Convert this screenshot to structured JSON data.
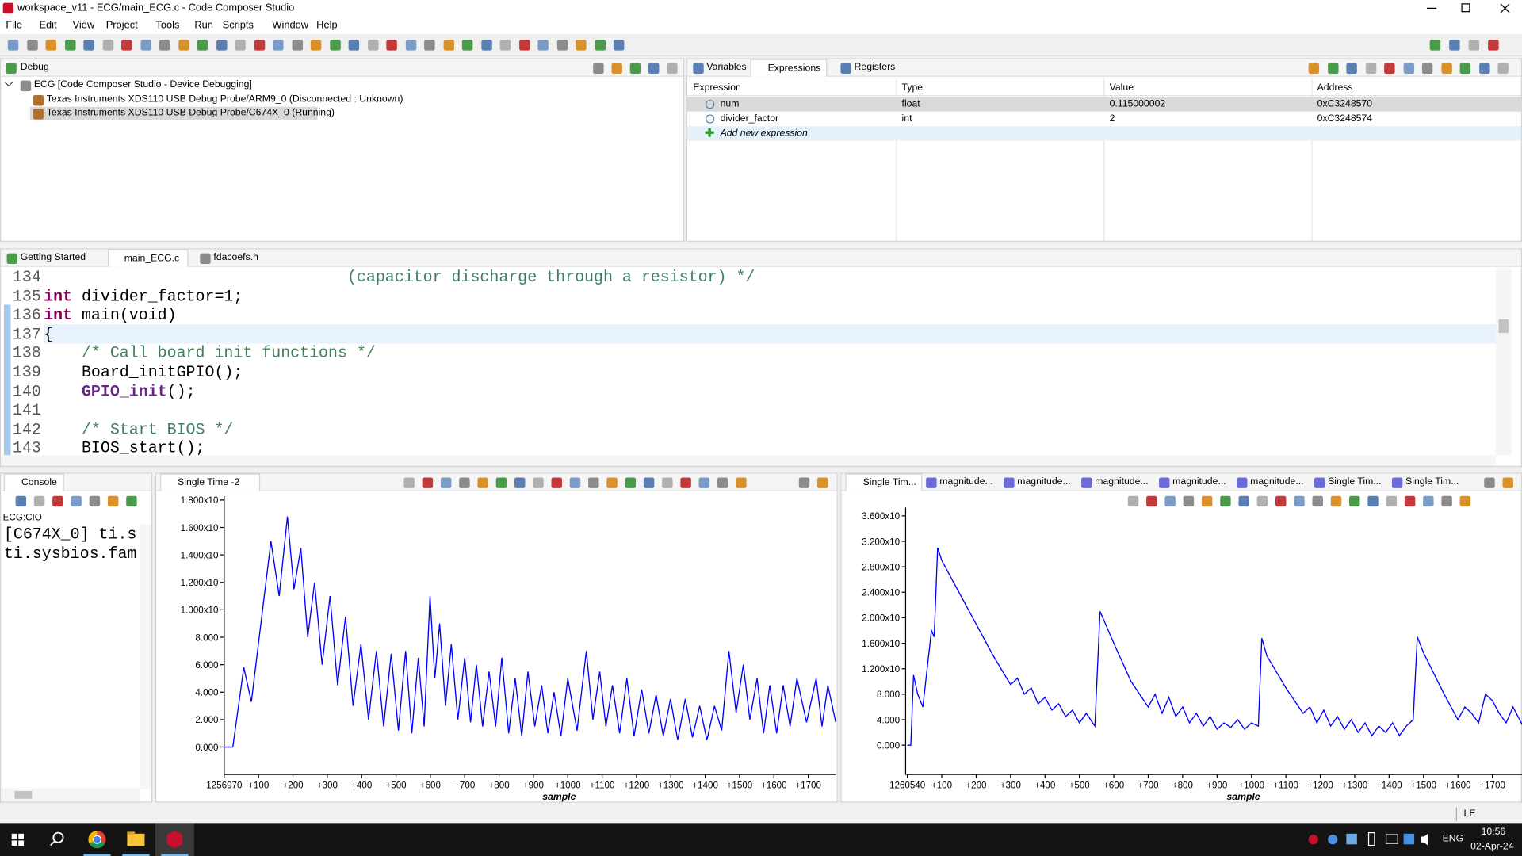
{
  "window": {
    "title": "workspace_v11 - ECG/main_ECG.c - Code Composer Studio"
  },
  "menu": [
    "File",
    "Edit",
    "View",
    "Project",
    "Tools",
    "Run",
    "Scripts",
    "Window",
    "Help"
  ],
  "debug": {
    "tab": "Debug",
    "items": [
      "ECG [Code Composer Studio - Device Debugging]",
      "Texas Instruments XDS110 USB Debug Probe/ARM9_0 (Disconnected : Unknown)",
      "Texas Instruments XDS110 USB Debug Probe/C674X_0 (Running)"
    ]
  },
  "expressions": {
    "tabs": [
      "Variables",
      "Expressions",
      "Registers"
    ],
    "columns": [
      "Expression",
      "Type",
      "Value",
      "Address"
    ],
    "rows": [
      [
        "num",
        "float",
        "0.115000002",
        "0xC3248570"
      ],
      [
        "divider_factor",
        "int",
        "2",
        "0xC3248574"
      ]
    ],
    "add": "Add new expression"
  },
  "editor": {
    "tabs": [
      "Getting Started",
      "main_ECG.c",
      "fdacoefs.h"
    ],
    "lines": [
      {
        "no": 134,
        "code": "                                (capacitor discharge through a resistor) */"
      },
      {
        "no": 135,
        "code": "int divider_factor=1;"
      },
      {
        "no": 136,
        "code": "int main(void)"
      },
      {
        "no": 137,
        "code": "{"
      },
      {
        "no": 138,
        "code": "    /* Call board init functions */"
      },
      {
        "no": 139,
        "code": "    Board_initGPIO();"
      },
      {
        "no": 140,
        "code": "    GPIO_init();"
      },
      {
        "no": 141,
        "code": ""
      },
      {
        "no": 142,
        "code": "    /* Start BIOS */"
      },
      {
        "no": 143,
        "code": "    BIOS_start();"
      }
    ]
  },
  "console": {
    "tab": "Console",
    "label": "ECG:CIO",
    "lines": [
      "[C674X_0] ti.s",
      "ti.sysbios.fam"
    ]
  },
  "graphs": [
    {
      "type": "line",
      "tabs": [
        "Single Time -2"
      ],
      "x_label": "sample",
      "color": "#0000ff",
      "xlim": [
        1256970,
        1258750
      ],
      "ylim": [
        -2000,
        18300
      ],
      "yticks": [
        {
          "value": 0,
          "label": "0.000"
        },
        {
          "value": 2000,
          "label": "2.000"
        },
        {
          "value": 4000,
          "label": "4.000"
        },
        {
          "value": 6000,
          "label": "6.000"
        },
        {
          "value": 8000,
          "label": "8.000"
        },
        {
          "value": 10000,
          "label": "1.000x10"
        },
        {
          "value": 12000,
          "label": "1.200x10"
        },
        {
          "value": 14000,
          "label": "1.400x10"
        },
        {
          "value": 16000,
          "label": "1.600x10"
        },
        {
          "value": 18000,
          "label": "1.800x10"
        }
      ],
      "xticks": [
        1256970,
        {
          "value": 1257070,
          "label": "+100"
        },
        {
          "value": 1257170,
          "label": "+200"
        },
        {
          "value": 1257270,
          "label": "+300"
        },
        {
          "value": 1257370,
          "label": "+400"
        },
        {
          "value": 1257470,
          "label": "+500"
        },
        {
          "value": 1257570,
          "label": "+600"
        },
        {
          "value": 1257670,
          "label": "+700"
        },
        {
          "value": 1257770,
          "label": "+800"
        },
        {
          "value": 1257870,
          "label": "+900"
        },
        {
          "value": 1257970,
          "label": "+1000"
        },
        {
          "value": 1258070,
          "label": "+1100"
        },
        {
          "value": 1258170,
          "label": "+1200"
        },
        {
          "value": 1258270,
          "label": "+1300"
        },
        {
          "value": 1258370,
          "label": "+1400"
        },
        {
          "value": 1258470,
          "label": "+1500"
        },
        {
          "value": 1258570,
          "label": "+1600"
        },
        {
          "value": 1258670,
          "label": "+1700"
        }
      ],
      "x": [
        1256970,
        1256995,
        1257027,
        1257049,
        1257106,
        1257130,
        1257154,
        1257173,
        1257193,
        1257213,
        1257233,
        1257255,
        1257278,
        1257300,
        1257323,
        1257345,
        1257368,
        1257390,
        1257413,
        1257434,
        1257456,
        1257477,
        1257498,
        1257516,
        1257535,
        1257552,
        1257569,
        1257583,
        1257597,
        1257614,
        1257631,
        1257650,
        1257670,
        1257687,
        1257704,
        1257722,
        1257741,
        1257760,
        1257778,
        1257798,
        1257817,
        1257836,
        1257854,
        1257874,
        1257894,
        1257912,
        1257930,
        1257950,
        1257970,
        1257997,
        1258024,
        1258043,
        1258063,
        1258081,
        1258100,
        1258121,
        1258142,
        1258163,
        1258185,
        1258206,
        1258227,
        1258248,
        1258269,
        1258290,
        1258312,
        1258333,
        1258354,
        1258375,
        1258397,
        1258418,
        1258439,
        1258460,
        1258481,
        1258500,
        1258521,
        1258540,
        1258558,
        1258578,
        1258597,
        1258617,
        1258637,
        1258665,
        1258693,
        1258710,
        1258727,
        1258750
      ],
      "values": [
        0,
        0,
        5800,
        3300,
        15000,
        11000,
        16800,
        11500,
        14500,
        8000,
        12000,
        6000,
        11000,
        4500,
        9500,
        3000,
        7500,
        2000,
        7000,
        1500,
        6800,
        1200,
        7000,
        1000,
        6500,
        1500,
        11000,
        5000,
        9000,
        3000,
        7500,
        2000,
        6500,
        1800,
        6000,
        1500,
        5500,
        1500,
        6500,
        1000,
        5000,
        800,
        5500,
        1500,
        4500,
        1000,
        4000,
        800,
        5000,
        1200,
        7000,
        2000,
        5500,
        1500,
        4500,
        1000,
        5000,
        800,
        4200,
        1000,
        3800,
        800,
        3500,
        500,
        3500,
        700,
        3000,
        500,
        3000,
        1200,
        7000,
        2500,
        6000,
        2000,
        5000,
        1000,
        4500,
        1000,
        4500,
        1500,
        5000,
        1800,
        5000,
        1500,
        4500,
        1800
      ]
    },
    {
      "type": "line",
      "tabs": [
        "Single Tim...",
        "magnitude...",
        "magnitude...",
        "magnitude...",
        "magnitude...",
        "magnitude...",
        "Single Tim...",
        "Single Tim..."
      ],
      "x_label": "sample",
      "color": "#0000ff",
      "xlim": [
        1260535,
        1262329
      ],
      "ylim": [
        -4600,
        37300
      ],
      "yticks": [
        {
          "value": 0,
          "label": "0.000"
        },
        {
          "value": 4000,
          "label": "4.000"
        },
        {
          "value": 8000,
          "label": "8.000"
        },
        {
          "value": 12000,
          "label": "1.200x10"
        },
        {
          "value": 16000,
          "label": "1.600x10"
        },
        {
          "value": 20000,
          "label": "2.000x10"
        },
        {
          "value": 24000,
          "label": "2.400x10"
        },
        {
          "value": 28000,
          "label": "2.800x10"
        },
        {
          "value": 32000,
          "label": "3.200x10"
        },
        {
          "value": 36000,
          "label": "3.600x10"
        }
      ],
      "xticks": [
        1260540,
        {
          "value": 1260640,
          "label": "+100"
        },
        {
          "value": 1260740,
          "label": "+200"
        },
        {
          "value": 1260840,
          "label": "+300"
        },
        {
          "value": 1260940,
          "label": "+400"
        },
        {
          "value": 1261040,
          "label": "+500"
        },
        {
          "value": 1261140,
          "label": "+600"
        },
        {
          "value": 1261240,
          "label": "+700"
        },
        {
          "value": 1261340,
          "label": "+800"
        },
        {
          "value": 1261440,
          "label": "+900"
        },
        {
          "value": 1261540,
          "label": "+1000"
        },
        {
          "value": 1261640,
          "label": "+1100"
        },
        {
          "value": 1261740,
          "label": "+1200"
        },
        {
          "value": 1261840,
          "label": "+1300"
        },
        {
          "value": 1261940,
          "label": "+1400"
        },
        {
          "value": 1262040,
          "label": "+1500"
        },
        {
          "value": 1262140,
          "label": "+1600"
        },
        {
          "value": 1262240,
          "label": "+1700"
        }
      ],
      "x": [
        1260540,
        1260550,
        1260558,
        1260570,
        1260585,
        1260610,
        1260618,
        1260628,
        1260640,
        1260690,
        1260790,
        1260840,
        1260860,
        1260880,
        1260900,
        1260920,
        1260940,
        1260960,
        1260980,
        1261000,
        1261020,
        1261040,
        1261060,
        1261085,
        1261100,
        1261140,
        1261190,
        1261240,
        1261260,
        1261280,
        1261300,
        1261320,
        1261340,
        1261360,
        1261380,
        1261400,
        1261420,
        1261440,
        1261460,
        1261480,
        1261500,
        1261520,
        1261540,
        1261560,
        1261570,
        1261585,
        1261640,
        1261690,
        1261710,
        1261730,
        1261750,
        1261770,
        1261790,
        1261810,
        1261830,
        1261850,
        1261870,
        1261890,
        1261910,
        1261930,
        1261950,
        1261970,
        1261990,
        1262010,
        1262022,
        1262040,
        1262100,
        1262140,
        1262160,
        1262180,
        1262200,
        1262220,
        1262240,
        1262260,
        1262280,
        1262300,
        1262329
      ],
      "values": [
        0,
        0,
        11000,
        8000,
        6000,
        18000,
        17000,
        31000,
        29000,
        24000,
        14000,
        9500,
        10500,
        8000,
        9000,
        6500,
        7500,
        5500,
        6500,
        4500,
        5500,
        3500,
        5000,
        3000,
        21000,
        16000,
        10000,
        6000,
        8000,
        5000,
        7500,
        4500,
        6000,
        3500,
        5000,
        3000,
        4500,
        2500,
        3500,
        2800,
        4000,
        2500,
        3500,
        3000,
        16800,
        14000,
        9000,
        5000,
        6000,
        3500,
        5500,
        3000,
        4500,
        2500,
        4000,
        2000,
        3500,
        1500,
        3000,
        2000,
        3500,
        1500,
        3000,
        4000,
        17000,
        14500,
        8000,
        4000,
        6000,
        5000,
        3500,
        8000,
        7000,
        5000,
        3500,
        6000,
        3000
      ]
    }
  ],
  "status": {
    "mode": "LE"
  },
  "taskbar": {
    "lang": "ENG",
    "time": "10:56",
    "date": "02-Apr-24"
  }
}
